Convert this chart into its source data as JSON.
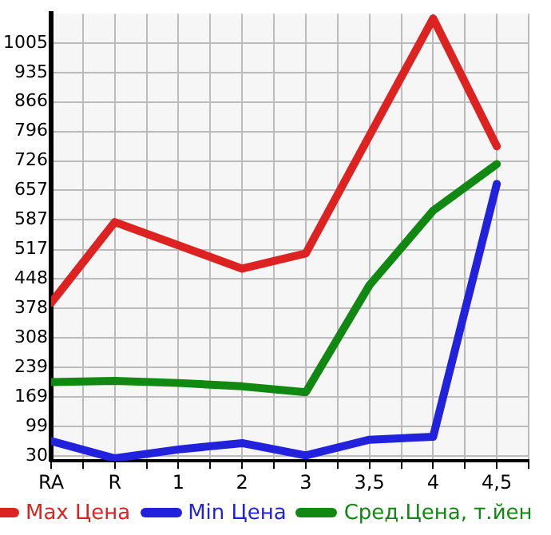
{
  "chart_data": {
    "type": "line",
    "categories": [
      "RA",
      "R",
      "1",
      "2",
      "3",
      "3,5",
      "4",
      "4,5"
    ],
    "series": [
      {
        "name": "Max Цена",
        "color": "#dd2222",
        "values": [
          391,
          582,
          527,
          472,
          508,
          786,
          1063,
          761
        ]
      },
      {
        "name": "Min Цена",
        "color": "#2222dd",
        "values": [
          65,
          24,
          45,
          60,
          31,
          68,
          75,
          672
        ]
      },
      {
        "name": "Сред.Цена, т.йен",
        "color": "#118811",
        "values": [
          204,
          207,
          202,
          194,
          180,
          433,
          609,
          719
        ]
      }
    ],
    "ylim": [
      18,
      1074
    ],
    "yticks": [
      30,
      99,
      169,
      239,
      308,
      378,
      448,
      517,
      587,
      657,
      726,
      796,
      866,
      935,
      1005
    ],
    "grid": true,
    "legend": "bottom",
    "marker": "none",
    "line_style": "solid"
  }
}
